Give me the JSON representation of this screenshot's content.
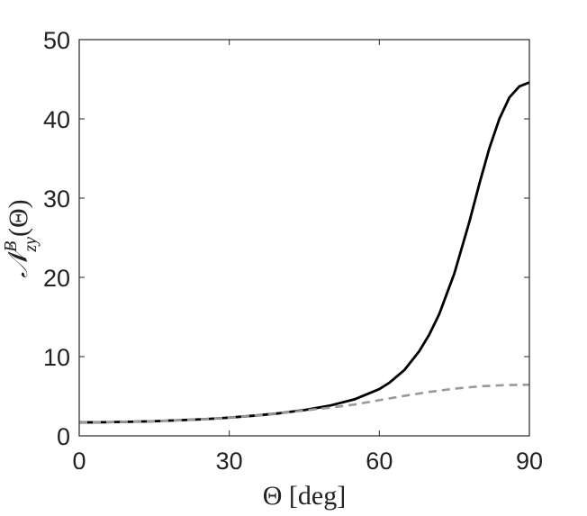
{
  "chart_data": {
    "type": "line",
    "title": "",
    "xlabel": "Θ [deg]",
    "ylabel": {
      "base": "𝒩",
      "superscript": "B",
      "subscript": "zy",
      "argument": "(Θ)"
    },
    "xlim": [
      0,
      90
    ],
    "ylim": [
      0,
      50
    ],
    "xticks": [
      0,
      30,
      60,
      90
    ],
    "yticks": [
      0,
      10,
      20,
      30,
      40,
      50
    ],
    "grid": false,
    "legend": "none",
    "series": [
      {
        "style": "solid",
        "color": "#000000",
        "x": [
          0,
          5,
          10,
          15,
          20,
          25,
          30,
          35,
          40,
          45,
          50,
          55,
          60,
          62,
          65,
          68,
          70,
          72,
          75,
          78,
          80,
          82,
          84,
          86,
          88,
          90
        ],
        "y": [
          1.7,
          1.72,
          1.78,
          1.85,
          1.97,
          2.1,
          2.3,
          2.55,
          2.85,
          3.25,
          3.8,
          4.6,
          5.9,
          6.7,
          8.3,
          10.7,
          12.8,
          15.4,
          20.5,
          27.0,
          31.8,
          36.3,
          40.0,
          42.7,
          44.1,
          44.6
        ]
      },
      {
        "style": "dashed",
        "color": "#999999",
        "x": [
          0,
          5,
          10,
          15,
          20,
          25,
          30,
          35,
          40,
          45,
          50,
          55,
          60,
          65,
          70,
          75,
          80,
          85,
          90
        ],
        "y": [
          1.7,
          1.72,
          1.78,
          1.85,
          1.97,
          2.1,
          2.3,
          2.55,
          2.85,
          3.2,
          3.55,
          3.95,
          4.5,
          5.05,
          5.55,
          5.95,
          6.25,
          6.4,
          6.45
        ]
      }
    ]
  }
}
